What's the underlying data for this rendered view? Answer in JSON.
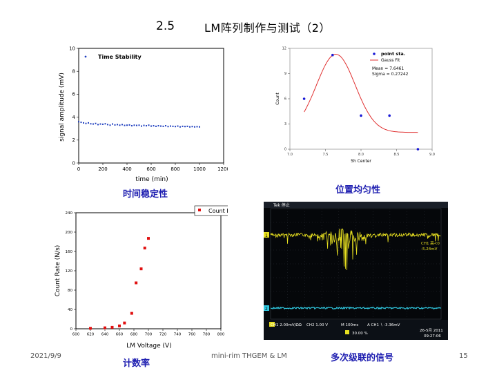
{
  "slide": {
    "number": "2.5",
    "title": "LM阵列制作与测试（2）",
    "footer_date": "2021/9/9",
    "footer_center": "mini-rim THGEM & LM",
    "page": "15"
  },
  "captions": {
    "time_stability": "时间稳定性",
    "position_uniformity": "位置均匀性",
    "count_rate": "计数率",
    "multi_stage_signal": "多次级联的信号"
  },
  "charts": {
    "time_stability": {
      "type": "scatter",
      "legend": "Time Stability",
      "xlabel": "time (min)",
      "ylabel": "signal amplitude (mV)",
      "xlim": [
        0,
        1200
      ],
      "ylim": [
        0,
        10
      ],
      "x_ticks": [
        "0",
        "200",
        "400",
        "600",
        "800",
        "1000",
        "1200"
      ],
      "y_ticks": [
        "0",
        "2",
        "4",
        "6",
        "8",
        "10"
      ],
      "color": "#1f3fbf"
    },
    "position_uniformity": {
      "type": "scatter",
      "legend_points": "point sta.",
      "legend_fit": "Gauss Fit",
      "stat_mean": "Mean = 7.6461",
      "stat_sigma": "Sigma = 0.27242",
      "xlabel": "5h Center",
      "ylabel": "Count",
      "xlim": [
        7.0,
        9.0
      ],
      "ylim": [
        0,
        12
      ],
      "x_ticks": [
        "7.0",
        "7.5",
        "8.0",
        "8.5",
        "9.0"
      ],
      "y_ticks": [
        "0",
        "3",
        "6",
        "9",
        "12"
      ],
      "point_color": "#1a1ad6",
      "fit_color": "#e03030"
    },
    "count_rate": {
      "type": "scatter",
      "legend": "Count Rate",
      "xlabel": "LM Voltage (V)",
      "ylabel": "Count Rate (N/s)",
      "xlim": [
        600,
        800
      ],
      "ylim": [
        0,
        240
      ],
      "x_ticks": [
        "600",
        "620",
        "640",
        "660",
        "680",
        "700",
        "720",
        "740",
        "760",
        "780",
        "800"
      ],
      "y_ticks": [
        "0",
        "40",
        "80",
        "120",
        "160",
        "200",
        "240"
      ],
      "color": "#e01010"
    },
    "oscilloscope": {
      "top_label": "Tek 停止",
      "ch1_marker": "1",
      "ch2_marker": "2",
      "ch1_note_line1": "CH1 高<0",
      "ch1_note_line2": "-5.24mV",
      "status_ch1": "CH1 2.00mV/ΩΩ",
      "status_ch2": "CH2 1.00 V",
      "status_time": "M 100ms",
      "status_trig": "A CH1 ∖ -3.36mV",
      "status_offset": "30.00 %",
      "date_line1": "26-5月 2011",
      "date_line2": "09:27:06",
      "ch1_color": "#e8e020",
      "ch2_color": "#30c8e0"
    }
  },
  "chart_data": [
    {
      "type": "scatter",
      "series": [
        {
          "name": "Time Stability",
          "x": [
            0,
            20,
            40,
            60,
            80,
            100,
            120,
            140,
            160,
            180,
            200,
            220,
            240,
            260,
            280,
            300,
            320,
            340,
            360,
            380,
            400,
            420,
            440,
            460,
            480,
            500,
            520,
            540,
            560,
            580,
            600,
            620,
            640,
            660,
            680,
            700,
            720,
            740,
            760,
            780,
            800,
            820,
            840,
            860,
            880,
            900,
            920,
            940,
            960,
            980,
            1000
          ],
          "y": [
            3.6,
            3.55,
            3.5,
            3.45,
            3.5,
            3.42,
            3.4,
            3.45,
            3.35,
            3.4,
            3.38,
            3.42,
            3.35,
            3.3,
            3.4,
            3.32,
            3.35,
            3.3,
            3.35,
            3.28,
            3.3,
            3.32,
            3.25,
            3.3,
            3.28,
            3.3,
            3.22,
            3.28,
            3.25,
            3.3,
            3.22,
            3.25,
            3.2,
            3.25,
            3.22,
            3.2,
            3.25,
            3.18,
            3.22,
            3.2,
            3.18,
            3.22,
            3.15,
            3.2,
            3.18,
            3.2,
            3.15,
            3.18,
            3.15,
            3.17,
            3.15
          ]
        }
      ],
      "xlim": [
        0,
        1200
      ],
      "ylim": [
        0,
        10
      ]
    },
    {
      "type": "scatter",
      "series": [
        {
          "name": "point sta.",
          "x": [
            7.2,
            7.6,
            8.0,
            8.4,
            8.8
          ],
          "y": [
            6,
            11.2,
            4,
            4,
            0
          ]
        },
        {
          "name": "Gauss Fit",
          "mean": 7.6461,
          "sigma": 0.27242
        }
      ],
      "xlim": [
        7.0,
        9.0
      ],
      "ylim": [
        0,
        12
      ]
    },
    {
      "type": "scatter",
      "series": [
        {
          "name": "Count Rate",
          "x": [
            620,
            640,
            650,
            660,
            667,
            677,
            683,
            690,
            695,
            700
          ],
          "y": [
            1,
            2,
            3,
            6,
            12,
            32,
            95,
            124,
            167,
            187
          ]
        }
      ],
      "xlim": [
        600,
        800
      ],
      "ylim": [
        0,
        240
      ]
    }
  ]
}
